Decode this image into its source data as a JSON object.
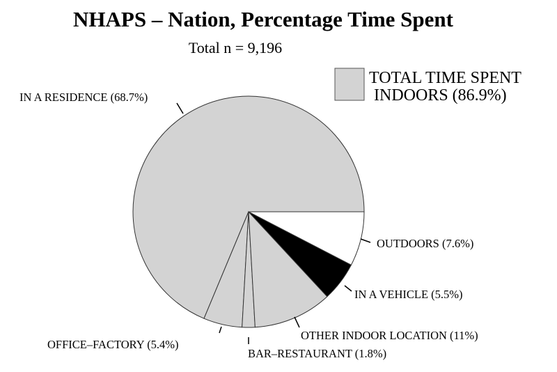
{
  "chart_data": {
    "type": "pie",
    "title": "NHAPS – Nation, Percentage Time Spent",
    "subtitle": "Total n = 9,196",
    "slices": [
      {
        "label": "IN A RESIDENCE (68.7%)",
        "value": 68.7,
        "color": "#d3d3d3"
      },
      {
        "label": "OFFICE–FACTORY (5.4%)",
        "value": 5.4,
        "color": "#d3d3d3"
      },
      {
        "label": "BAR–RESTAURANT (1.8%)",
        "value": 1.8,
        "color": "#d3d3d3"
      },
      {
        "label": "OTHER INDOOR LOCATION (11%)",
        "value": 11,
        "color": "#d3d3d3"
      },
      {
        "label": "IN A VEHICLE (5.5%)",
        "value": 5.5,
        "color": "#000000"
      },
      {
        "label": "OUTDOORS (7.6%)",
        "value": 7.6,
        "color": "#ffffff"
      }
    ],
    "legend": {
      "placement": "top-right",
      "lines": [
        "TOTAL TIME SPENT",
        "INDOORS (86.9%)"
      ],
      "color": "#d3d3d3"
    }
  }
}
